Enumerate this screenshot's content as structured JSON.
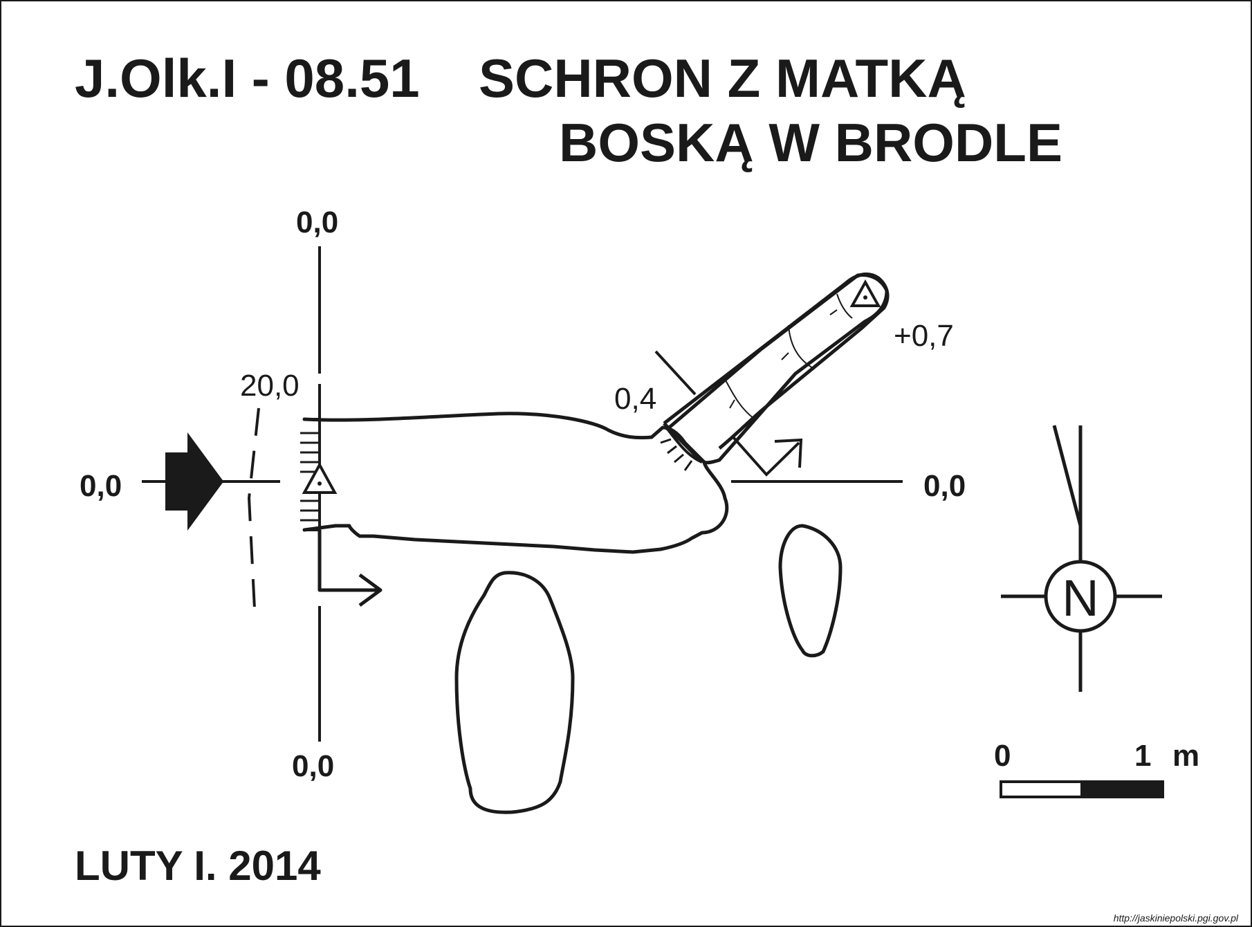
{
  "title": {
    "code": "J.Olk.I - 08.51",
    "name_line1": "SCHRON Z MATKĄ",
    "name_line2": "BOSKĄ W BRODLE"
  },
  "date": "LUTY I. 2014",
  "source_url": "http://jaskiniepolski.pgi.gov.pl",
  "plan": {
    "section_labels": {
      "top": "0,0",
      "bottom": "0,0",
      "left": "0,0",
      "right": "0,0"
    },
    "height_labels": {
      "entrance": "20,0",
      "passage": "0,4",
      "end": "+0,7"
    }
  },
  "north_arrow": {
    "label": "N"
  },
  "scale_bar": {
    "start": "0",
    "end": "1",
    "unit": "m",
    "length_m": 1
  },
  "colors": {
    "ink": "#1a1a1a",
    "paper": "#ffffff"
  }
}
